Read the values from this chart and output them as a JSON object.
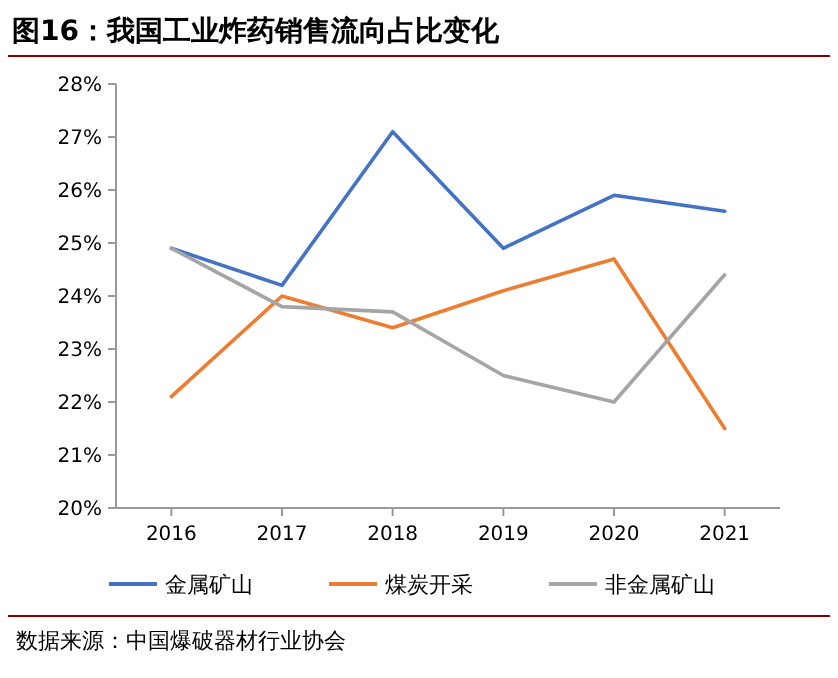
{
  "chart_data": {
    "type": "line",
    "title": "图16：我国工业炸药销售流向占比变化",
    "categories": [
      "2016",
      "2017",
      "2018",
      "2019",
      "2020",
      "2021"
    ],
    "series": [
      {
        "name": "金属矿山",
        "color": "#4472c4",
        "values": [
          24.9,
          24.2,
          27.1,
          24.9,
          25.9,
          25.6
        ]
      },
      {
        "name": "煤炭开采",
        "color": "#ed7d31",
        "values": [
          22.1,
          24.0,
          23.4,
          24.1,
          24.7,
          21.5
        ]
      },
      {
        "name": "非金属矿山",
        "color": "#a5a5a5",
        "values": [
          24.9,
          23.8,
          23.7,
          22.5,
          22.0,
          24.4
        ]
      }
    ],
    "ylim": [
      20,
      28
    ],
    "yticks": [
      {
        "value": 20,
        "label": "20%"
      },
      {
        "value": 21,
        "label": "21%"
      },
      {
        "value": 22,
        "label": "22%"
      },
      {
        "value": 23,
        "label": "23%"
      },
      {
        "value": 24,
        "label": "24%"
      },
      {
        "value": 25,
        "label": "25%"
      },
      {
        "value": 26,
        "label": "26%"
      },
      {
        "value": 27,
        "label": "27%"
      },
      {
        "value": 28,
        "label": "28%"
      }
    ],
    "legend": "bottom",
    "grid": false,
    "marker": "none",
    "line_style": "solid",
    "annotations": [
      "数据来源：中国爆破器材行业协会"
    ]
  }
}
